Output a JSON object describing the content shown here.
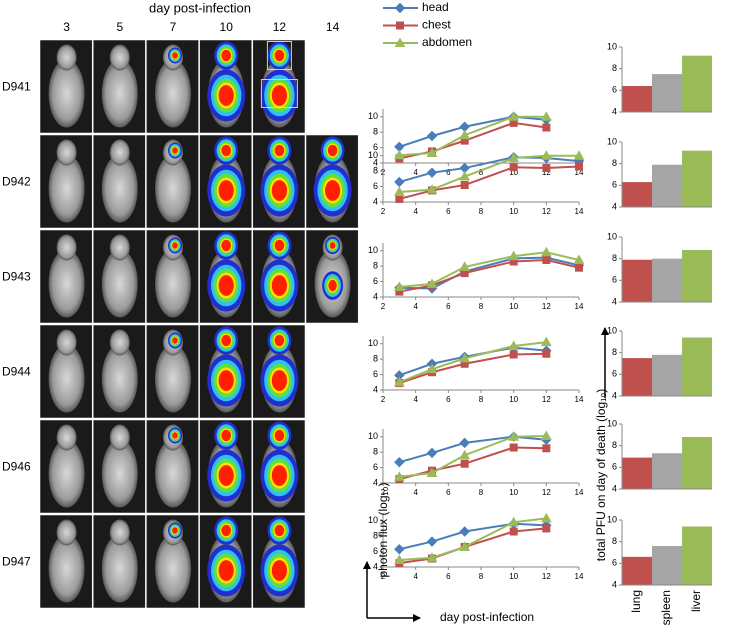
{
  "image_panel": {
    "title": "day post-infection",
    "days": [
      3,
      5,
      7,
      10,
      12,
      14
    ],
    "animals": [
      "D941",
      "D942",
      "D943",
      "D944",
      "D946",
      "D947"
    ]
  },
  "chart_data": [
    {
      "type": "line",
      "legend": "top",
      "x": [
        3,
        5,
        7,
        10,
        12
      ],
      "xlim": [
        2,
        14
      ],
      "xticks": [
        2,
        4,
        6,
        8,
        10,
        12,
        14
      ],
      "ylim": [
        4,
        11
      ],
      "yticks": [
        4,
        6,
        8,
        10
      ],
      "series": [
        {
          "name": "head",
          "color": "#4a7ebb",
          "marker": "diamond",
          "values": [
            6.1,
            7.5,
            8.7,
            10.0,
            9.6
          ]
        },
        {
          "name": "chest",
          "color": "#c0504d",
          "marker": "square",
          "values": [
            4.6,
            5.5,
            6.9,
            9.2,
            8.6
          ]
        },
        {
          "name": "abdomen",
          "color": "#9bbb59",
          "marker": "triangle",
          "values": [
            5.0,
            5.3,
            7.6,
            10.0,
            10.0
          ]
        }
      ]
    },
    {
      "type": "line",
      "x": [
        3,
        5,
        7,
        10,
        12,
        14
      ],
      "xlim": [
        2,
        14
      ],
      "xticks": [
        2,
        4,
        6,
        8,
        10,
        12,
        14
      ],
      "ylim": [
        4,
        11
      ],
      "yticks": [
        4,
        6,
        8,
        10
      ],
      "series": [
        {
          "color": "#4a7ebb",
          "marker": "diamond",
          "values": [
            6.6,
            7.8,
            8.4,
            9.8,
            9.7,
            9.3
          ]
        },
        {
          "color": "#c0504d",
          "marker": "square",
          "values": [
            4.4,
            5.5,
            6.2,
            8.5,
            8.4,
            8.6
          ]
        },
        {
          "color": "#9bbb59",
          "marker": "triangle",
          "values": [
            5.3,
            5.6,
            7.3,
            9.7,
            10.0,
            10.0
          ]
        }
      ]
    },
    {
      "type": "line",
      "x": [
        3,
        5,
        7,
        10,
        12,
        14
      ],
      "xlim": [
        2,
        14
      ],
      "xticks": [
        2,
        4,
        6,
        8,
        10,
        12,
        14
      ],
      "ylim": [
        4,
        11
      ],
      "yticks": [
        4,
        6,
        8,
        10
      ],
      "series": [
        {
          "color": "#4a7ebb",
          "marker": "diamond",
          "values": [
            5.2,
            5.1,
            7.3,
            9.0,
            9.1,
            8.1
          ]
        },
        {
          "color": "#c0504d",
          "marker": "square",
          "values": [
            4.7,
            5.5,
            7.1,
            8.6,
            8.8,
            7.8
          ]
        },
        {
          "color": "#9bbb59",
          "marker": "triangle",
          "values": [
            5.3,
            5.7,
            7.9,
            9.3,
            9.8,
            8.8
          ]
        }
      ]
    },
    {
      "type": "line",
      "x": [
        3,
        5,
        7,
        10,
        12
      ],
      "xlim": [
        2,
        14
      ],
      "xticks": [
        2,
        4,
        6,
        8,
        10,
        12,
        14
      ],
      "ylim": [
        4,
        11
      ],
      "yticks": [
        4,
        6,
        8,
        10
      ],
      "series": [
        {
          "color": "#4a7ebb",
          "marker": "diamond",
          "values": [
            5.9,
            7.4,
            8.3,
            9.5,
            9.1
          ]
        },
        {
          "color": "#c0504d",
          "marker": "square",
          "values": [
            4.9,
            6.3,
            7.4,
            8.6,
            8.7
          ]
        },
        {
          "color": "#9bbb59",
          "marker": "triangle",
          "values": [
            5.0,
            6.7,
            8.1,
            9.7,
            10.2
          ]
        }
      ]
    },
    {
      "type": "line",
      "x": [
        3,
        5,
        7,
        10,
        12
      ],
      "xlim": [
        2,
        14
      ],
      "xticks": [
        2,
        4,
        6,
        8,
        10,
        12,
        14
      ],
      "ylim": [
        4,
        11
      ],
      "yticks": [
        4,
        6,
        8,
        10
      ],
      "series": [
        {
          "color": "#4a7ebb",
          "marker": "diamond",
          "values": [
            6.7,
            7.9,
            9.2,
            10.0,
            9.6
          ]
        },
        {
          "color": "#c0504d",
          "marker": "square",
          "values": [
            4.5,
            5.6,
            6.5,
            8.6,
            8.5
          ]
        },
        {
          "color": "#9bbb59",
          "marker": "triangle",
          "values": [
            4.8,
            5.3,
            7.6,
            10.0,
            10.1
          ]
        }
      ]
    },
    {
      "type": "line",
      "xlabel": "day post-infection",
      "ylabel": "photon flux (log₁₀)",
      "x": [
        3,
        5,
        7,
        10,
        12
      ],
      "xlim": [
        2,
        14
      ],
      "xticks": [
        2,
        4,
        6,
        8,
        10,
        12,
        14
      ],
      "ylim": [
        4,
        11
      ],
      "yticks": [
        4,
        6,
        8,
        10
      ],
      "series": [
        {
          "color": "#4a7ebb",
          "marker": "diamond",
          "values": [
            6.3,
            7.3,
            8.6,
            9.6,
            9.4
          ]
        },
        {
          "color": "#c0504d",
          "marker": "square",
          "values": [
            4.5,
            5.1,
            6.6,
            8.6,
            9.0
          ]
        },
        {
          "color": "#9bbb59",
          "marker": "triangle",
          "values": [
            4.9,
            5.2,
            6.6,
            9.8,
            10.3
          ]
        }
      ]
    },
    {
      "type": "bar",
      "values": [
        6.4,
        7.5,
        9.2
      ],
      "colors": [
        "#c0504d",
        "#a5a5a5",
        "#9bbb59"
      ],
      "ylim": [
        4,
        10
      ],
      "yticks": [
        4,
        6,
        8,
        10
      ]
    },
    {
      "type": "bar",
      "values": [
        6.3,
        7.9,
        9.2
      ],
      "colors": [
        "#c0504d",
        "#a5a5a5",
        "#9bbb59"
      ],
      "ylim": [
        4,
        10
      ],
      "yticks": [
        4,
        6,
        8,
        10
      ]
    },
    {
      "type": "bar",
      "values": [
        7.9,
        8.0,
        8.8
      ],
      "colors": [
        "#c0504d",
        "#a5a5a5",
        "#9bbb59"
      ],
      "ylim": [
        4,
        10
      ],
      "yticks": [
        4,
        6,
        8,
        10
      ]
    },
    {
      "type": "bar",
      "values": [
        7.5,
        7.8,
        9.4
      ],
      "colors": [
        "#c0504d",
        "#a5a5a5",
        "#9bbb59"
      ],
      "ylim": [
        4,
        10
      ],
      "yticks": [
        4,
        6,
        8,
        10
      ]
    },
    {
      "type": "bar",
      "values": [
        6.9,
        7.3,
        8.8
      ],
      "colors": [
        "#c0504d",
        "#a5a5a5",
        "#9bbb59"
      ],
      "ylim": [
        4,
        10
      ],
      "yticks": [
        4,
        6,
        8,
        10
      ]
    },
    {
      "type": "bar",
      "ylabel": "total PFU on day of death (log₁₀)",
      "categories": [
        "lung",
        "spleen",
        "liver"
      ],
      "values": [
        6.6,
        7.6,
        9.4
      ],
      "colors": [
        "#c0504d",
        "#a5a5a5",
        "#9bbb59"
      ],
      "ylim": [
        4,
        10
      ],
      "yticks": [
        4,
        6,
        8,
        10
      ]
    }
  ]
}
